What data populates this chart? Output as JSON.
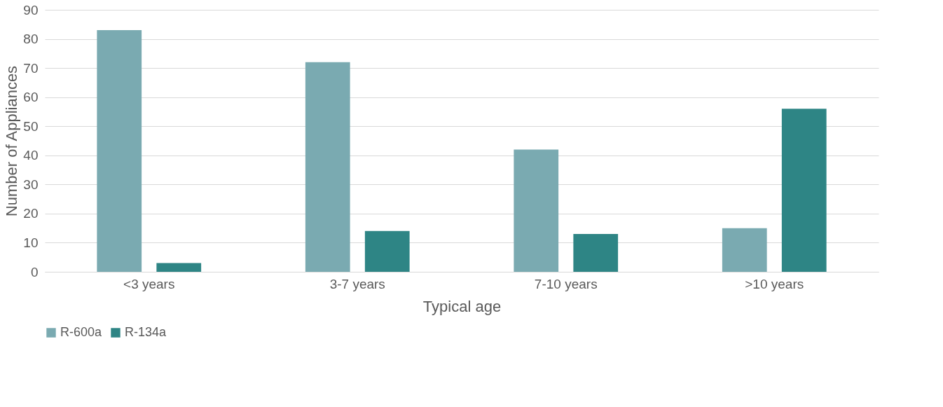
{
  "chart_data": {
    "type": "bar",
    "xlabel": "Typical age",
    "ylabel": "Number of Appliances",
    "categories": [
      "<3 years",
      "3-7 years",
      "7-10 years",
      ">10 years"
    ],
    "series": [
      {
        "name": "R-600a",
        "color": "#7aaab1",
        "values": [
          83,
          72,
          42,
          15
        ]
      },
      {
        "name": "R-134a",
        "color": "#2e8585",
        "values": [
          3,
          14,
          13,
          56
        ]
      }
    ],
    "ylim": [
      0,
      90
    ],
    "yticks": [
      0,
      10,
      20,
      30,
      40,
      50,
      60,
      70,
      80,
      90
    ],
    "grid": "y",
    "legend": "bottom"
  }
}
